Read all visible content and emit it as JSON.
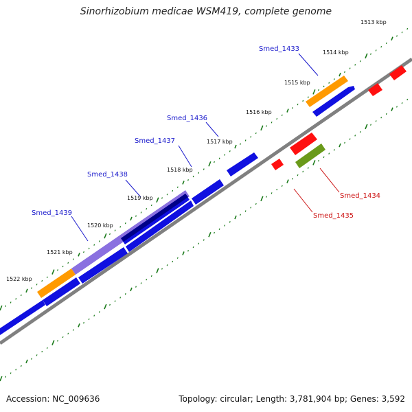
{
  "title": "Sinorhizobium medicae WSM419, complete genome",
  "footer": {
    "accession": "Accession: NC_009636",
    "summary": "Topology: circular; Length: 3,781,904 bp; Genes: 3,592"
  },
  "ruler_labels": [
    "1513 kbp",
    "1514 kbp",
    "1515 kbp",
    "1516 kbp",
    "1517 kbp",
    "1518 kbp",
    "1519 kbp",
    "1520 kbp",
    "1521 kbp",
    "1522 kbp"
  ],
  "gene_labels": [
    {
      "name": "Smed_1433",
      "color": "#1a1acc"
    },
    {
      "name": "Smed_1434",
      "color": "#cc1111"
    },
    {
      "name": "Smed_1435",
      "color": "#cc1111"
    },
    {
      "name": "Smed_1436",
      "color": "#1a1acc"
    },
    {
      "name": "Smed_1437",
      "color": "#1a1acc"
    },
    {
      "name": "Smed_1438",
      "color": "#1a1acc"
    },
    {
      "name": "Smed_1439",
      "color": "#1a1acc"
    }
  ],
  "colors": {
    "forward_cds": "#1010e0",
    "reverse_cds": "#ff1010",
    "orange_feature": "#ff9a00",
    "olive_feature": "#6a9a1a",
    "purple_feature": "#8a70e0",
    "navy_feature": "#000088",
    "backbone": "#808080",
    "tick": "#1a7a1a"
  }
}
